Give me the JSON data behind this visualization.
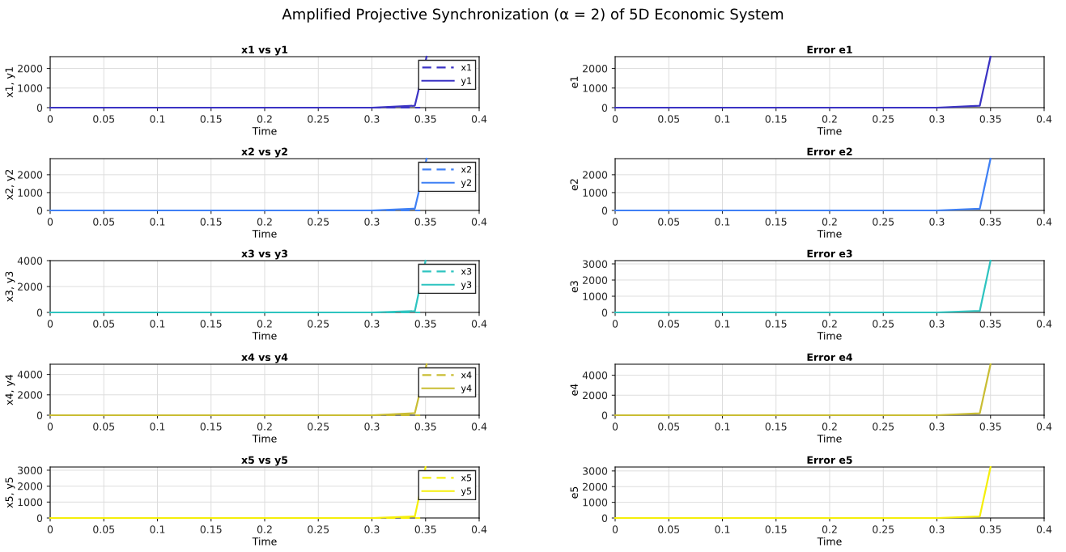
{
  "chart_data": [
    {
      "type": "line",
      "title": "x1 vs y1",
      "xlabel": "Time",
      "ylabel": "x1, y1",
      "annotations": [
        "Amplified Projective Synchronization (α = 2) of 5D Economic System"
      ],
      "xlim": [
        0,
        0.4
      ],
      "xticks": [
        0,
        0.05,
        0.1,
        0.15,
        0.2,
        0.25,
        0.3,
        0.35,
        0.4
      ],
      "ylim": [
        0,
        2600
      ],
      "yticks": [
        0,
        1000,
        2000
      ],
      "grid": true,
      "legend": "top right",
      "series": [
        {
          "name": "x1",
          "color": "#3b33c4",
          "line_style": "dashed",
          "x": [
            0.3,
            0.345
          ],
          "values": [
            0,
            0
          ]
        },
        {
          "name": "y1",
          "color": "#3b33c4",
          "line_style": "solid",
          "x": [
            0,
            0.1,
            0.2,
            0.3,
            0.34,
            0.351
          ],
          "values": [
            0,
            0,
            0,
            0,
            100,
            2600
          ]
        }
      ]
    },
    {
      "type": "line",
      "title": "Error e1",
      "xlabel": "Time",
      "ylabel": "e1",
      "xlim": [
        0,
        0.4
      ],
      "xticks": [
        0,
        0.05,
        0.1,
        0.15,
        0.2,
        0.25,
        0.3,
        0.35,
        0.4
      ],
      "ylim": [
        0,
        2600
      ],
      "yticks": [
        0,
        1000,
        2000
      ],
      "grid": true,
      "series": [
        {
          "color": "#3b33c4",
          "line_style": "solid",
          "x": [
            0,
            0.1,
            0.2,
            0.3,
            0.34,
            0.35
          ],
          "values": [
            0,
            0,
            0,
            0,
            100,
            2600
          ]
        }
      ]
    },
    {
      "type": "line",
      "title": "x2 vs y2",
      "xlabel": "Time",
      "ylabel": "x2, y2",
      "xlim": [
        0,
        0.4
      ],
      "xticks": [
        0,
        0.05,
        0.1,
        0.15,
        0.2,
        0.25,
        0.3,
        0.35,
        0.4
      ],
      "ylim": [
        0,
        2900
      ],
      "yticks": [
        0,
        1000,
        2000
      ],
      "grid": true,
      "legend": "top right",
      "series": [
        {
          "name": "x2",
          "color": "#3f80f5",
          "line_style": "dashed",
          "x": [
            0.3,
            0.345
          ],
          "values": [
            0,
            0
          ]
        },
        {
          "name": "y2",
          "color": "#3f80f5",
          "line_style": "solid",
          "x": [
            0,
            0.1,
            0.2,
            0.3,
            0.34,
            0.351
          ],
          "values": [
            0,
            0,
            0,
            0,
            100,
            2900
          ]
        }
      ]
    },
    {
      "type": "line",
      "title": "Error e2",
      "xlabel": "Time",
      "ylabel": "e2",
      "xlim": [
        0,
        0.4
      ],
      "xticks": [
        0,
        0.05,
        0.1,
        0.15,
        0.2,
        0.25,
        0.3,
        0.35,
        0.4
      ],
      "ylim": [
        0,
        2900
      ],
      "yticks": [
        0,
        1000,
        2000
      ],
      "grid": true,
      "series": [
        {
          "color": "#3f80f5",
          "line_style": "solid",
          "x": [
            0,
            0.1,
            0.2,
            0.3,
            0.34,
            0.35
          ],
          "values": [
            0,
            0,
            0,
            0,
            100,
            2900
          ]
        }
      ]
    },
    {
      "type": "line",
      "title": "x3 vs y3",
      "xlabel": "Time",
      "ylabel": "x3, y3",
      "xlim": [
        0,
        0.4
      ],
      "xticks": [
        0,
        0.05,
        0.1,
        0.15,
        0.2,
        0.25,
        0.3,
        0.35,
        0.4
      ],
      "ylim": [
        0,
        4000
      ],
      "yticks": [
        0,
        2000,
        4000
      ],
      "grid": true,
      "legend": "top right",
      "series": [
        {
          "name": "x3",
          "color": "#2ec4c0",
          "line_style": "dashed",
          "x": [
            0.3,
            0.345
          ],
          "values": [
            0,
            0
          ]
        },
        {
          "name": "y3",
          "color": "#2ec4c0",
          "line_style": "solid",
          "x": [
            0,
            0.1,
            0.2,
            0.3,
            0.34,
            0.35
          ],
          "values": [
            0,
            0,
            0,
            0,
            100,
            4000
          ]
        }
      ]
    },
    {
      "type": "line",
      "title": "Error e3",
      "xlabel": "Time",
      "ylabel": "e3",
      "xlim": [
        0,
        0.4
      ],
      "xticks": [
        0,
        0.05,
        0.1,
        0.15,
        0.2,
        0.25,
        0.3,
        0.35,
        0.4
      ],
      "ylim": [
        0,
        3200
      ],
      "yticks": [
        0,
        1000,
        2000,
        3000
      ],
      "grid": true,
      "series": [
        {
          "color": "#2ec4c0",
          "line_style": "solid",
          "x": [
            0,
            0.1,
            0.2,
            0.3,
            0.34,
            0.35
          ],
          "values": [
            0,
            0,
            0,
            0,
            100,
            3200
          ]
        }
      ]
    },
    {
      "type": "line",
      "title": "x4 vs y4",
      "xlabel": "Time",
      "ylabel": "x4, y4",
      "xlim": [
        0,
        0.4
      ],
      "xticks": [
        0,
        0.05,
        0.1,
        0.15,
        0.2,
        0.25,
        0.3,
        0.35,
        0.4
      ],
      "ylim": [
        0,
        5000
      ],
      "yticks": [
        0,
        2000,
        4000
      ],
      "grid": true,
      "legend": "top right",
      "series": [
        {
          "name": "x4",
          "color": "#c9bd33",
          "line_style": "dashed",
          "x": [
            0.3,
            0.345
          ],
          "values": [
            0,
            0
          ]
        },
        {
          "name": "y4",
          "color": "#c9bd33",
          "line_style": "solid",
          "x": [
            0,
            0.1,
            0.2,
            0.3,
            0.34,
            0.351
          ],
          "values": [
            0,
            0,
            0,
            0,
            200,
            5000
          ]
        }
      ]
    },
    {
      "type": "line",
      "title": "Error e4",
      "xlabel": "Time",
      "ylabel": "e4",
      "xlim": [
        0,
        0.4
      ],
      "xticks": [
        0,
        0.05,
        0.1,
        0.15,
        0.2,
        0.25,
        0.3,
        0.35,
        0.4
      ],
      "ylim": [
        0,
        5100
      ],
      "yticks": [
        0,
        2000,
        4000
      ],
      "grid": true,
      "series": [
        {
          "color": "#c9bd33",
          "line_style": "solid",
          "x": [
            0,
            0.1,
            0.2,
            0.3,
            0.34,
            0.35
          ],
          "values": [
            0,
            0,
            0,
            0,
            200,
            5100
          ]
        }
      ]
    },
    {
      "type": "line",
      "title": "x5 vs y5",
      "xlabel": "Time",
      "ylabel": "x5, y5",
      "xlim": [
        0,
        0.4
      ],
      "xticks": [
        0,
        0.05,
        0.1,
        0.15,
        0.2,
        0.25,
        0.3,
        0.35,
        0.4
      ],
      "ylim": [
        0,
        3200
      ],
      "yticks": [
        0,
        1000,
        2000,
        3000
      ],
      "grid": true,
      "legend": "top right",
      "series": [
        {
          "name": "x5",
          "color": "#f5ef0a",
          "line_style": "dashed",
          "x": [
            0.3,
            0.345
          ],
          "values": [
            0,
            0
          ]
        },
        {
          "name": "y5",
          "color": "#f5ef0a",
          "line_style": "solid",
          "x": [
            0,
            0.1,
            0.2,
            0.3,
            0.34,
            0.35
          ],
          "values": [
            0,
            0,
            0,
            0,
            100,
            3200
          ]
        }
      ]
    },
    {
      "type": "line",
      "title": "Error e5",
      "xlabel": "Time",
      "ylabel": "e5",
      "xlim": [
        0,
        0.4
      ],
      "xticks": [
        0,
        0.05,
        0.1,
        0.15,
        0.2,
        0.25,
        0.3,
        0.35,
        0.4
      ],
      "ylim": [
        0,
        3250
      ],
      "yticks": [
        0,
        1000,
        2000,
        3000
      ],
      "grid": true,
      "series": [
        {
          "color": "#f5ef0a",
          "line_style": "solid",
          "x": [
            0,
            0.1,
            0.2,
            0.3,
            0.34,
            0.35
          ],
          "values": [
            0,
            0,
            0,
            0,
            100,
            3250
          ]
        }
      ]
    }
  ]
}
